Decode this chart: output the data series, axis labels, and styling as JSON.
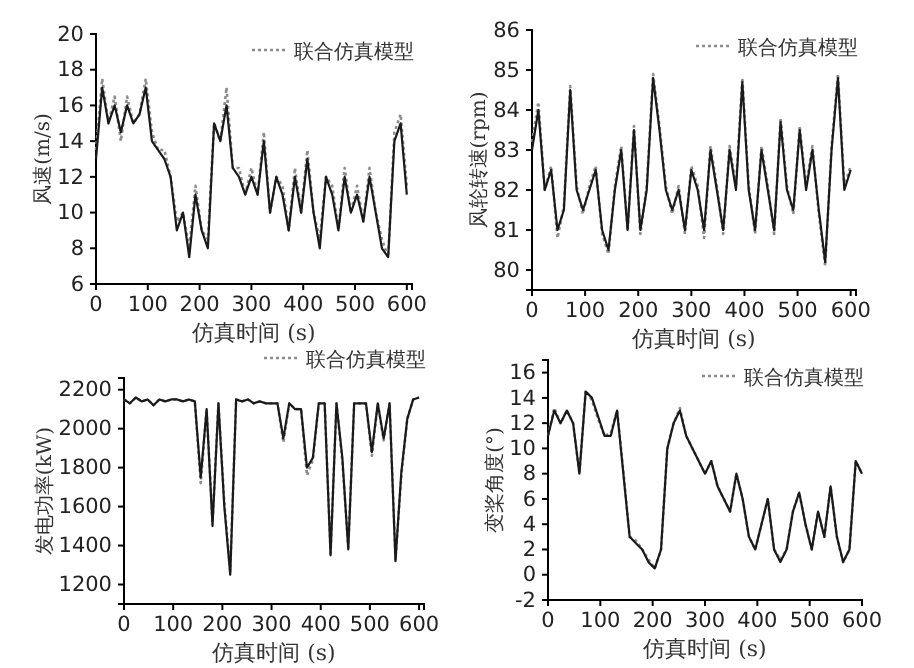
{
  "chart_data": [
    {
      "type": "line",
      "xlabel": "仿真时间 (s)",
      "ylabel": "风速(m/s)",
      "xlim": [
        0,
        610
      ],
      "xticks": [
        0,
        100,
        200,
        300,
        400,
        500,
        600
      ],
      "ylim": [
        6,
        20
      ],
      "yticks": [
        6,
        8,
        10,
        12,
        14,
        16,
        18,
        20
      ],
      "legend": "top right",
      "grid": false,
      "x": [
        0,
        12,
        24,
        36,
        48,
        60,
        72,
        84,
        96,
        108,
        120,
        132,
        144,
        156,
        168,
        180,
        192,
        204,
        216,
        228,
        240,
        252,
        264,
        276,
        288,
        300,
        312,
        324,
        336,
        348,
        360,
        372,
        384,
        396,
        408,
        420,
        432,
        444,
        456,
        468,
        480,
        492,
        504,
        516,
        528,
        540,
        552,
        564,
        576,
        588,
        600
      ],
      "series": [
        {
          "name": "联合仿真模型",
          "color": "#8c8c8c",
          "line_style": "dotted",
          "values": [
            13.5,
            17.5,
            15,
            16.5,
            14,
            16.5,
            15,
            15.5,
            17.5,
            14.5,
            13.5,
            13.5,
            12,
            9.5,
            10,
            8,
            11.5,
            9,
            8.5,
            15,
            14,
            17,
            12.5,
            12.5,
            11,
            12.5,
            11,
            14.5,
            10,
            12,
            11.5,
            9,
            12.5,
            10,
            13.5,
            10,
            8.5,
            12,
            11.5,
            9,
            12.5,
            10,
            11.5,
            9.5,
            12.5,
            10,
            8.5,
            7.5,
            14.5,
            15.5,
            11.5
          ]
        },
        {
          "color": "#1a1a1a",
          "line_style": "solid",
          "values": [
            13,
            17,
            15,
            16,
            14.5,
            16,
            15,
            15.5,
            17,
            14,
            13.5,
            13,
            12,
            9,
            10,
            7.5,
            11,
            9,
            8,
            15,
            14,
            16,
            12.5,
            12,
            11,
            12,
            11,
            14,
            10,
            12,
            11,
            9,
            12,
            10,
            13,
            10,
            8,
            12,
            11,
            9,
            12,
            10,
            11,
            9.5,
            12,
            10,
            8,
            7.5,
            14,
            15,
            11
          ]
        }
      ]
    },
    {
      "type": "line",
      "xlabel": "仿真时间 (s)",
      "ylabel": "风轮转速(rpm)",
      "xlim": [
        0,
        610
      ],
      "xticks": [
        0,
        100,
        200,
        300,
        400,
        500,
        600
      ],
      "ylim": [
        79.5,
        86
      ],
      "yticks": [
        80,
        81,
        82,
        83,
        84,
        85,
        86
      ],
      "legend": "top right",
      "grid": false,
      "x": [
        0,
        12,
        24,
        36,
        48,
        60,
        72,
        84,
        96,
        108,
        120,
        132,
        144,
        156,
        168,
        180,
        192,
        204,
        216,
        228,
        240,
        252,
        264,
        276,
        288,
        300,
        312,
        324,
        336,
        348,
        360,
        372,
        384,
        396,
        408,
        420,
        432,
        444,
        456,
        468,
        480,
        492,
        504,
        516,
        528,
        540,
        552,
        564,
        576,
        588,
        600
      ],
      "series": [
        {
          "name": "联合仿真模型",
          "color": "#8c8c8c",
          "line_style": "dotted",
          "values": [
            83.2,
            84.2,
            82,
            82.6,
            80.8,
            81.6,
            84.6,
            82.1,
            81.4,
            82.1,
            82.6,
            80.9,
            80.4,
            82.1,
            83.1,
            81,
            83.6,
            80.9,
            82.1,
            84.9,
            83.6,
            82.1,
            81.4,
            82.1,
            80.9,
            82.6,
            82.1,
            80.8,
            83.1,
            82.1,
            80.9,
            83.1,
            82.1,
            84.8,
            82.1,
            80.9,
            83.1,
            82.1,
            80.9,
            83.8,
            82.1,
            81.4,
            83.6,
            82.1,
            83.1,
            81.4,
            80.1,
            83.1,
            84.9,
            82.1,
            82.6
          ]
        },
        {
          "color": "#1a1a1a",
          "line_style": "solid",
          "values": [
            83,
            84,
            82,
            82.5,
            81,
            81.5,
            84.5,
            82,
            81.5,
            82,
            82.5,
            81,
            80.5,
            82,
            83,
            81,
            83.5,
            81,
            82,
            84.8,
            83.5,
            82,
            81.5,
            82,
            81,
            82.5,
            82,
            81,
            83,
            82,
            81,
            83,
            82,
            84.7,
            82,
            81,
            83,
            82,
            81,
            83.7,
            82,
            81.5,
            83.5,
            82,
            83,
            81.5,
            80.2,
            83,
            84.8,
            82,
            82.5
          ]
        }
      ]
    },
    {
      "type": "line",
      "xlabel": "仿真时间 (s)",
      "ylabel": "发电功率(kW)",
      "xlim": [
        0,
        610
      ],
      "xticks": [
        0,
        100,
        200,
        300,
        400,
        500,
        600
      ],
      "ylim": [
        1100,
        2260
      ],
      "yticks": [
        1200,
        1400,
        1600,
        1800,
        2000,
        2200
      ],
      "legend": "top right",
      "grid": false,
      "x": [
        0,
        12,
        24,
        36,
        48,
        60,
        72,
        84,
        96,
        108,
        120,
        132,
        144,
        156,
        168,
        180,
        192,
        204,
        216,
        228,
        240,
        252,
        264,
        276,
        288,
        300,
        312,
        324,
        336,
        348,
        360,
        372,
        384,
        396,
        408,
        420,
        432,
        444,
        456,
        468,
        480,
        492,
        504,
        516,
        528,
        540,
        552,
        564,
        576,
        588,
        600
      ],
      "series": [
        {
          "name": "联合仿真模型",
          "color": "#8c8c8c",
          "line_style": "dotted",
          "values": [
            2150,
            2130,
            2160,
            2140,
            2150,
            2120,
            2150,
            2140,
            2150,
            2150,
            2140,
            2150,
            2140,
            1720,
            2100,
            1520,
            2130,
            1620,
            1270,
            2150,
            2140,
            2150,
            2130,
            2140,
            2130,
            2130,
            2130,
            1930,
            2130,
            2100,
            2100,
            1760,
            1840,
            2130,
            2130,
            1360,
            2130,
            1830,
            1390,
            2130,
            2130,
            2130,
            1860,
            2130,
            1940,
            2130,
            1330,
            1760,
            2050,
            2150,
            2160
          ]
        },
        {
          "color": "#1a1a1a",
          "line_style": "solid",
          "values": [
            2150,
            2130,
            2160,
            2140,
            2150,
            2120,
            2150,
            2140,
            2150,
            2150,
            2140,
            2150,
            2140,
            1750,
            2100,
            1500,
            2130,
            1600,
            1250,
            2150,
            2140,
            2150,
            2130,
            2140,
            2130,
            2130,
            2130,
            1950,
            2130,
            2100,
            2100,
            1800,
            1850,
            2130,
            2130,
            1350,
            2130,
            1850,
            1380,
            2130,
            2130,
            2130,
            1880,
            2130,
            1950,
            2130,
            1320,
            1780,
            2050,
            2150,
            2160
          ]
        }
      ]
    },
    {
      "type": "line",
      "xlabel": "仿真时间 (s)",
      "ylabel": "变桨角度(°)",
      "xlim": [
        0,
        600
      ],
      "xticks": [
        0,
        100,
        200,
        300,
        400,
        500,
        600
      ],
      "ylim": [
        -2,
        17
      ],
      "yticks": [
        -2,
        0,
        2,
        4,
        6,
        8,
        10,
        12,
        14,
        16
      ],
      "legend": "top right",
      "grid": false,
      "x": [
        0,
        12,
        24,
        36,
        48,
        60,
        72,
        84,
        96,
        108,
        120,
        132,
        144,
        156,
        168,
        180,
        192,
        204,
        216,
        228,
        240,
        252,
        264,
        276,
        288,
        300,
        312,
        324,
        336,
        348,
        360,
        372,
        384,
        396,
        408,
        420,
        432,
        444,
        456,
        468,
        480,
        492,
        504,
        516,
        528,
        540,
        552,
        564,
        576,
        588,
        600
      ],
      "series": [
        {
          "name": "联合仿真模型",
          "color": "#8c8c8c",
          "line_style": "dotted",
          "values": [
            11,
            13.2,
            12,
            13,
            12,
            8,
            14.6,
            13.8,
            12.3,
            11,
            11.2,
            13,
            8.2,
            3,
            2.7,
            2,
            1.2,
            0.5,
            2,
            10,
            12,
            13.2,
            11,
            10,
            9,
            8,
            9,
            7,
            6,
            5,
            8,
            6,
            3,
            2,
            4,
            6,
            2,
            1.2,
            2,
            5,
            6.5,
            4,
            2,
            5,
            3,
            7,
            3,
            1,
            2,
            9,
            8
          ]
        },
        {
          "color": "#1a1a1a",
          "line_style": "solid",
          "values": [
            11,
            13,
            12,
            13,
            12,
            8,
            14.5,
            14,
            12.5,
            11,
            11,
            13,
            8,
            3,
            2.5,
            2,
            1,
            0.5,
            2,
            10,
            12,
            13,
            11,
            10,
            9,
            8,
            9,
            7,
            6,
            5,
            8,
            6,
            3,
            2,
            4,
            6,
            2,
            1,
            2,
            5,
            6.5,
            4,
            2,
            5,
            3,
            7,
            3,
            1,
            2,
            9,
            8
          ]
        }
      ]
    }
  ]
}
